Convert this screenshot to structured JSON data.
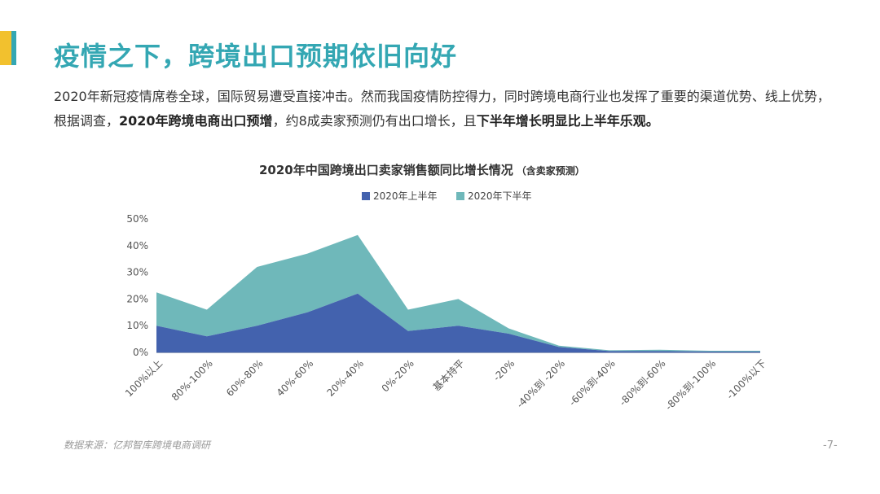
{
  "header": {
    "title": "疫情之下，跨境出口预期依旧向好"
  },
  "intro": {
    "part1": "2020年新冠疫情席卷全球，国际贸易遭受直接冲击。然而我国疫情防控得力，同时跨境电商行业也发挥了重要的渠道优势、线上优势，根据调查，",
    "bold1": "2020年跨境电商出口预增",
    "part2": "，约8成卖家预测仍有出口增长，且",
    "bold2": "下半年增长明显比上半年乐观。"
  },
  "footer": {
    "source": "数据来源：亿邦智库跨境电商调研",
    "page": "-7-"
  },
  "colors": {
    "accent": "#34A7B3",
    "h1": "#4362AE",
    "h2": "#6FB8BA"
  },
  "chart_data": {
    "type": "area",
    "stacked": true,
    "title": "2020年中国跨境出口卖家销售额同比增长情况",
    "title_note": "（含卖家预测）",
    "categories": [
      "100%以上",
      "80%-100%",
      "60%-80%",
      "40%-60%",
      "20%-40%",
      "0%-20%",
      "基本持平",
      "-20%",
      "-40%到 -20%",
      "-60%到-40%",
      "-80%到-60%",
      "-80%到-100%",
      "-100%以下"
    ],
    "series": [
      {
        "name": "2020年上半年",
        "values": [
          10,
          6,
          10,
          15,
          22,
          8,
          10,
          7,
          2,
          0.5,
          0.5,
          0.3,
          0.3
        ]
      },
      {
        "name": "2020年下半年",
        "values": [
          12.5,
          10,
          22,
          22,
          22,
          8,
          10,
          2,
          0.5,
          0.3,
          0.5,
          0.3,
          0.3
        ]
      }
    ],
    "y_ticks": [
      "0%",
      "10%",
      "20%",
      "30%",
      "40%",
      "50%"
    ],
    "ylim": [
      0,
      50
    ],
    "legend_position": "top-center"
  }
}
